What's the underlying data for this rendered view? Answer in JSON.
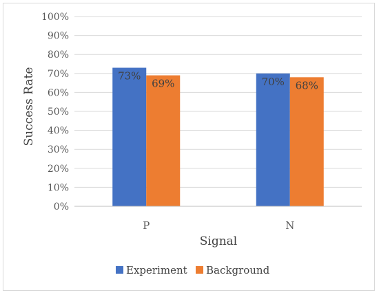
{
  "chart_data": {
    "type": "bar",
    "title": "",
    "xlabel": "Signal",
    "ylabel": "Success Rate",
    "categories": [
      "P",
      "N"
    ],
    "series": [
      {
        "name": "Experiment",
        "values": [
          73,
          70
        ],
        "color": "#4472c4",
        "labels": [
          "73%",
          "70%"
        ]
      },
      {
        "name": "Background",
        "values": [
          69,
          68
        ],
        "color": "#ed7d31",
        "labels": [
          "69%",
          "68%"
        ]
      }
    ],
    "ylim": [
      0,
      100
    ],
    "yticks": [
      "0%",
      "10%",
      "20%",
      "30%",
      "40%",
      "50%",
      "60%",
      "70%",
      "80%",
      "90%",
      "100%"
    ],
    "grid": true,
    "legend_position": "bottom"
  }
}
